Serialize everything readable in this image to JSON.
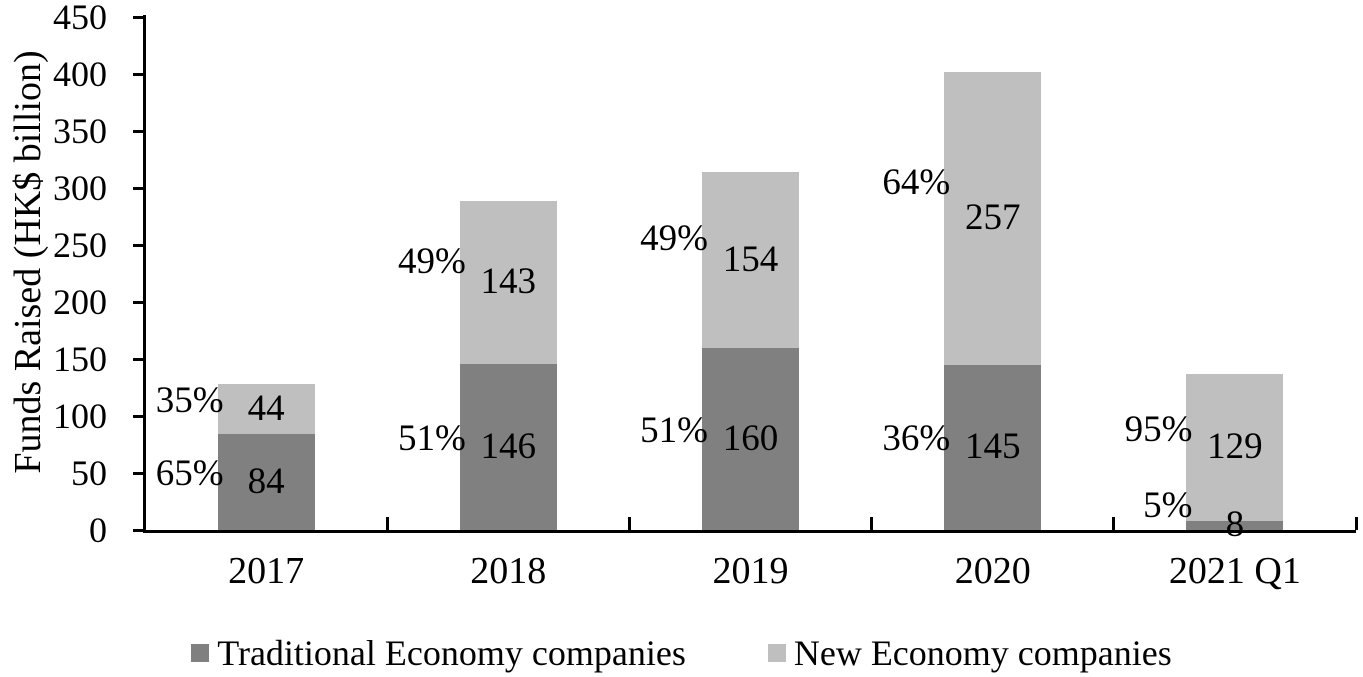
{
  "chart_data": {
    "type": "bar",
    "stacked": true,
    "title": "",
    "ylabel": "Funds Raised (HK$ billion)",
    "xlabel": "",
    "ylim": [
      0,
      450
    ],
    "ytick_step": 50,
    "yticks": [
      0,
      50,
      100,
      150,
      200,
      250,
      300,
      350,
      400,
      450
    ],
    "grid": false,
    "legend_position": "bottom",
    "categories": [
      "2017",
      "2018",
      "2019",
      "2020",
      "2021 Q1"
    ],
    "series": [
      {
        "name": "Traditional Economy companies",
        "color": "#808080",
        "values": [
          84,
          146,
          160,
          145,
          8
        ],
        "percent_labels": [
          "65%",
          "51%",
          "51%",
          "36%",
          "5%"
        ]
      },
      {
        "name": "New Economy companies",
        "color": "#BFBFBF",
        "values": [
          44,
          143,
          154,
          257,
          129
        ],
        "percent_labels": [
          "35%",
          "49%",
          "49%",
          "64%",
          "95%"
        ]
      }
    ]
  },
  "colors": {
    "axis": "#000000",
    "text": "#000000",
    "background": "#FFFFFF"
  }
}
